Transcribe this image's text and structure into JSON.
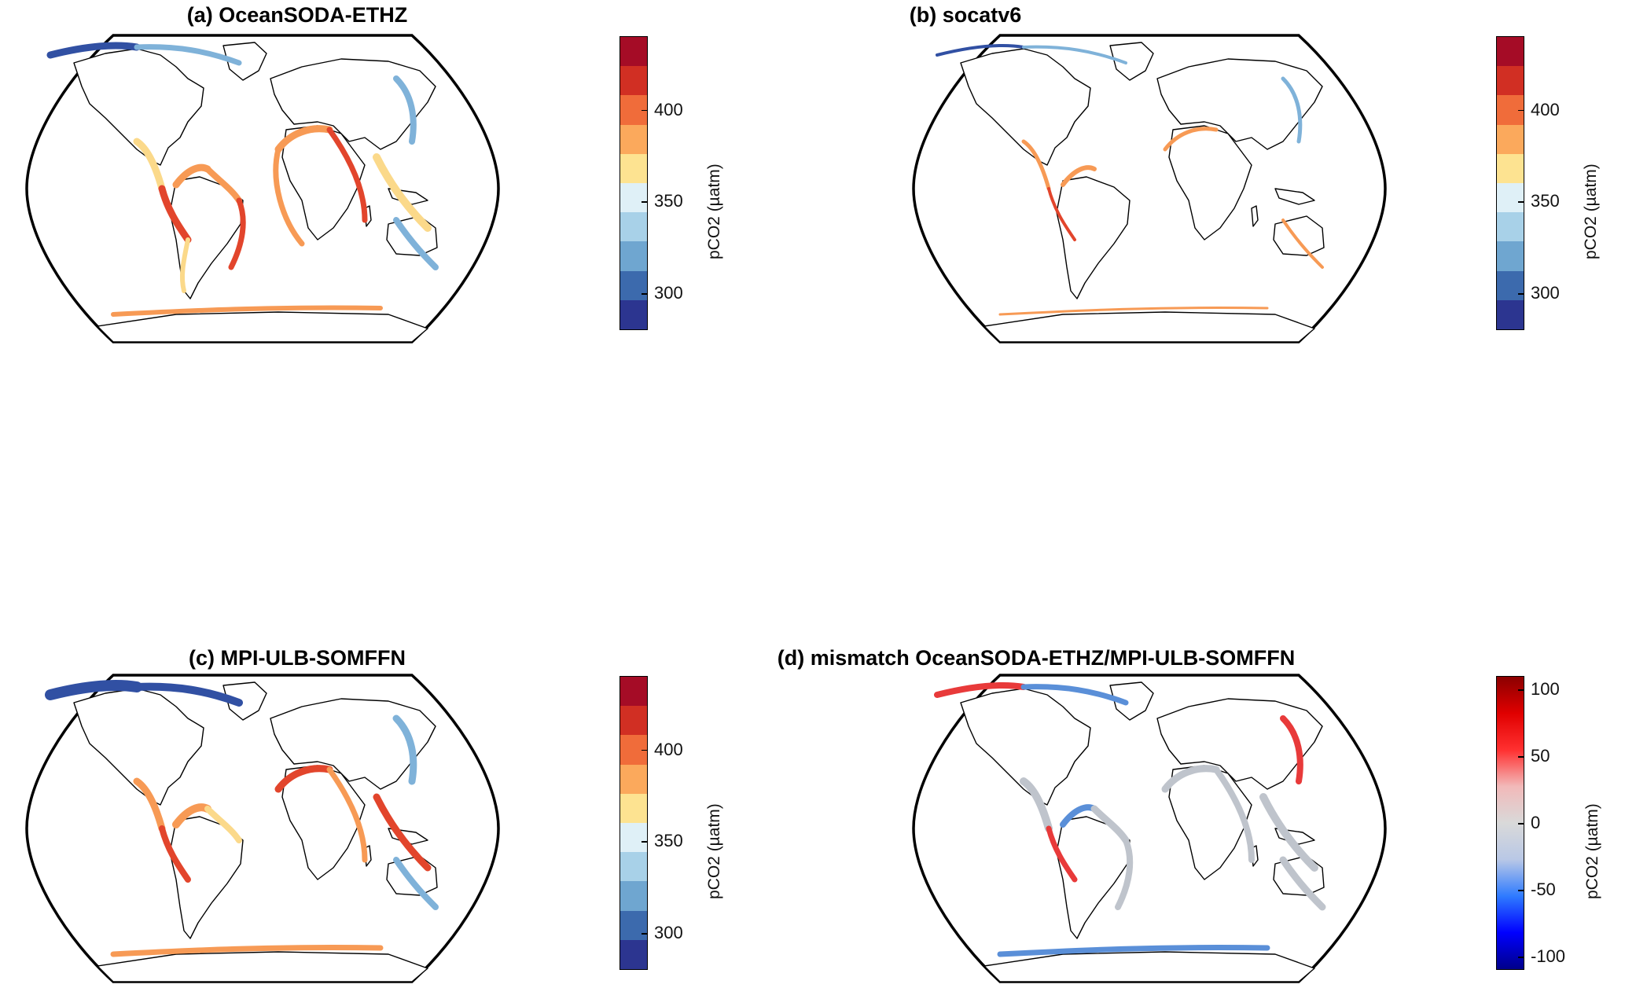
{
  "panels": [
    {
      "title": "(a) OceanSODA-ETHZ",
      "colorbar": {
        "label": "pCO2 (µatm)",
        "min": 280,
        "max": 440,
        "ticks": [
          "400",
          "350",
          "300"
        ],
        "tick_values": [
          400,
          350,
          300
        ],
        "colors": [
          "#2c3590",
          "#3c6aad",
          "#6fa6d0",
          "#a8d1e8",
          "#dff0f7",
          "#fde391",
          "#fba95c",
          "#f06c3a",
          "#d12f23",
          "#a50c26"
        ]
      }
    },
    {
      "title": "(b) socatv6",
      "colorbar": {
        "label": "pCO2 (µatm)",
        "min": 280,
        "max": 440,
        "ticks": [
          "400",
          "350",
          "300"
        ],
        "tick_values": [
          400,
          350,
          300
        ],
        "colors": [
          "#2c3590",
          "#3c6aad",
          "#6fa6d0",
          "#a8d1e8",
          "#dff0f7",
          "#fde391",
          "#fba95c",
          "#f06c3a",
          "#d12f23",
          "#a50c26"
        ]
      }
    },
    {
      "title": "(c) MPI-ULB-SOMFFN",
      "colorbar": {
        "label": "pCO2 (µatm)",
        "min": 280,
        "max": 440,
        "ticks": [
          "400",
          "350",
          "300"
        ],
        "tick_values": [
          400,
          350,
          300
        ],
        "colors": [
          "#2c3590",
          "#3c6aad",
          "#6fa6d0",
          "#a8d1e8",
          "#dff0f7",
          "#fde391",
          "#fba95c",
          "#f06c3a",
          "#d12f23",
          "#a50c26"
        ]
      }
    },
    {
      "title": "(d) mismatch OceanSODA-ETHZ/MPI-ULB-SOMFFN",
      "colorbar": {
        "label": "pCO2 (µatm)",
        "min": -110,
        "max": 110,
        "ticks": [
          "100",
          "50",
          "0",
          "-50",
          "-100"
        ],
        "tick_values": [
          100,
          50,
          0,
          -50,
          -100
        ],
        "gradient": [
          "#00008a",
          "#0000ff",
          "#2f7bff",
          "#b9c8e6",
          "#d9d9d9",
          "#f2b9b9",
          "#ff3030",
          "#e00000",
          "#8b0000"
        ]
      }
    }
  ],
  "colors": {
    "coast_red": "#e2452c",
    "coast_orange": "#f79a55",
    "coast_yellow": "#fbd98a",
    "coast_blue": "#7fb2d9",
    "coast_darkblue": "#3150a3",
    "coast_grey": "#bfc4cc",
    "coast_mismatch_red": "#e83a3a",
    "coast_mismatch_blue": "#5a8fd8"
  }
}
